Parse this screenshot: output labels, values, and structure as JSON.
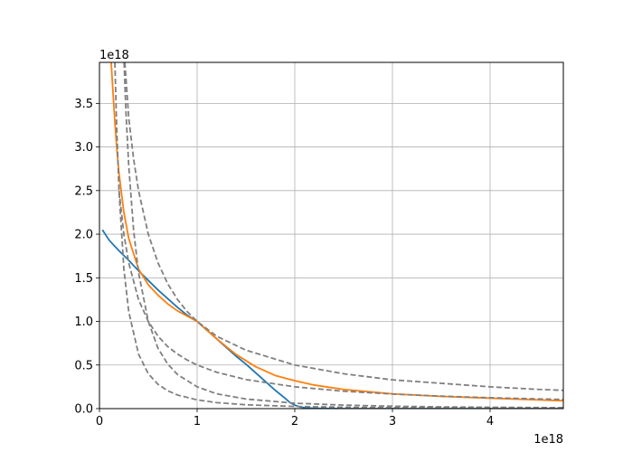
{
  "chart_data": {
    "type": "line",
    "title": "",
    "xlabel": "",
    "ylabel": "",
    "x_offset_text": "1e18",
    "y_offset_text": "1e18",
    "xlim": [
      0,
      4.75
    ],
    "ylim": [
      0,
      3.97
    ],
    "grid": true,
    "x_ticks": [
      0,
      1,
      2,
      3,
      4
    ],
    "x_tick_labels": [
      "0",
      "1",
      "2",
      "3",
      "4"
    ],
    "y_ticks": [
      0,
      0.5,
      1.0,
      1.5,
      2.0,
      2.5,
      3.0,
      3.5
    ],
    "y_tick_labels": [
      "0.0",
      "0.5",
      "1.0",
      "1.5",
      "2.0",
      "2.5",
      "3.0",
      "3.5"
    ],
    "series": [
      {
        "color": "#1f77b4",
        "style": "solid",
        "x": [
          0.03,
          0.1,
          0.2,
          0.3,
          0.4,
          0.5,
          0.6,
          0.7,
          0.8,
          0.9,
          1.0,
          1.1,
          1.2,
          1.3,
          1.4,
          1.5,
          1.6,
          1.7,
          1.8,
          1.9,
          1.95,
          2.0,
          2.05,
          2.1,
          2.2,
          2.5,
          3.0,
          4.0,
          4.75
        ],
        "y": [
          2.05,
          1.93,
          1.81,
          1.7,
          1.58,
          1.47,
          1.36,
          1.26,
          1.16,
          1.07,
          1.0,
          0.9,
          0.8,
          0.7,
          0.6,
          0.51,
          0.41,
          0.31,
          0.21,
          0.12,
          0.07,
          0.04,
          0.02,
          0.01,
          0.003,
          0.0,
          0.0,
          0.0,
          0.0
        ]
      },
      {
        "color": "#ff7f0e",
        "style": "solid",
        "x": [
          0.12,
          0.14,
          0.16,
          0.18,
          0.2,
          0.25,
          0.3,
          0.4,
          0.5,
          0.6,
          0.7,
          0.8,
          0.9,
          1.0,
          1.2,
          1.4,
          1.6,
          1.8,
          2.0,
          2.2,
          2.5,
          3.0,
          3.5,
          4.0,
          4.5,
          4.75
        ],
        "y": [
          3.97,
          3.6,
          3.25,
          2.95,
          2.7,
          2.25,
          1.95,
          1.6,
          1.42,
          1.3,
          1.2,
          1.12,
          1.06,
          1.0,
          0.8,
          0.62,
          0.48,
          0.38,
          0.32,
          0.27,
          0.22,
          0.17,
          0.14,
          0.12,
          0.1,
          0.09
        ]
      },
      {
        "color": "#808080",
        "style": "dashed",
        "x": [
          0.252,
          0.27,
          0.3,
          0.35,
          0.4,
          0.5,
          0.6,
          0.7,
          0.8,
          1.0,
          1.2,
          1.5,
          2.0,
          2.5,
          3.0,
          3.5,
          4.0,
          4.5,
          4.75
        ],
        "y": [
          3.97,
          3.43,
          2.78,
          2.04,
          1.56,
          1.0,
          0.69,
          0.51,
          0.39,
          0.25,
          0.17,
          0.11,
          0.0625,
          0.04,
          0.028,
          0.02,
          0.0156,
          0.0123,
          0.011
        ]
      },
      {
        "color": "#808080",
        "style": "dashed",
        "x": [
          0.158,
          0.175,
          0.2,
          0.25,
          0.3,
          0.4,
          0.5,
          0.6,
          0.7,
          0.8,
          1.0,
          1.2,
          1.5,
          2.0,
          2.5,
          3.0,
          3.5,
          4.0,
          4.5,
          4.75
        ],
        "y": [
          3.97,
          3.27,
          2.5,
          1.6,
          1.11,
          0.625,
          0.4,
          0.278,
          0.204,
          0.156,
          0.1,
          0.069,
          0.044,
          0.025,
          0.016,
          0.011,
          0.008,
          0.00625,
          0.0049,
          0.0044
        ]
      },
      {
        "color": "#808080",
        "style": "dashed",
        "x": [
          0.26,
          0.3,
          0.35,
          0.4,
          0.5,
          0.6,
          0.7,
          0.8,
          0.9,
          1.0,
          1.2,
          1.5,
          2.0,
          2.5,
          3.0,
          3.5,
          4.0,
          4.5,
          4.75
        ],
        "y": [
          3.97,
          3.33,
          2.86,
          2.5,
          2.0,
          1.67,
          1.43,
          1.25,
          1.11,
          1.0,
          0.83,
          0.67,
          0.5,
          0.4,
          0.33,
          0.29,
          0.25,
          0.22,
          0.21
        ]
      },
      {
        "color": "#808080",
        "style": "dashed",
        "x": [
          0.2,
          0.25,
          0.3,
          0.4,
          0.5,
          0.6,
          0.7,
          0.8,
          0.9,
          1.0,
          1.2,
          1.5,
          2.0,
          2.5,
          3.0,
          3.5,
          4.0,
          4.5,
          4.75
        ],
        "y": [
          2.5,
          2.0,
          1.67,
          1.25,
          1.0,
          0.83,
          0.71,
          0.625,
          0.556,
          0.5,
          0.417,
          0.333,
          0.25,
          0.2,
          0.167,
          0.143,
          0.125,
          0.111,
          0.105
        ]
      }
    ]
  }
}
